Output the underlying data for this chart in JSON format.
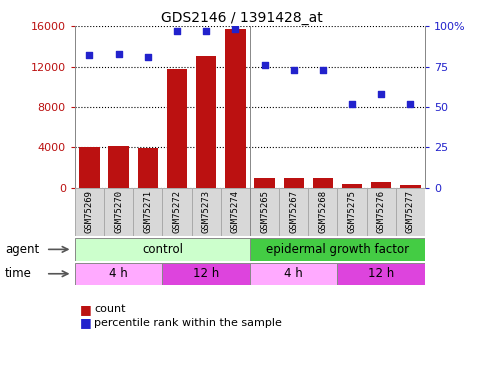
{
  "title": "GDS2146 / 1391428_at",
  "samples": [
    "GSM75269",
    "GSM75270",
    "GSM75271",
    "GSM75272",
    "GSM75273",
    "GSM75274",
    "GSM75265",
    "GSM75267",
    "GSM75268",
    "GSM75275",
    "GSM75276",
    "GSM75277"
  ],
  "counts": [
    4000,
    4100,
    3900,
    11800,
    13000,
    15700,
    900,
    900,
    950,
    300,
    500,
    200
  ],
  "percentiles": [
    82,
    83,
    81,
    97,
    97,
    98,
    76,
    73,
    73,
    52,
    58,
    52
  ],
  "ylim_left": [
    0,
    16000
  ],
  "ylim_right": [
    0,
    100
  ],
  "yticks_left": [
    0,
    4000,
    8000,
    12000,
    16000
  ],
  "yticks_right": [
    0,
    25,
    50,
    75,
    100
  ],
  "bar_color": "#bb1111",
  "dot_color": "#2222cc",
  "agent_control_color": "#ccffcc",
  "agent_egf_color": "#44cc44",
  "time_4h_color": "#ffaaff",
  "time_12h_color": "#dd44dd",
  "sample_bg_color": "#d8d8d8",
  "sample_edge_color": "#aaaaaa"
}
